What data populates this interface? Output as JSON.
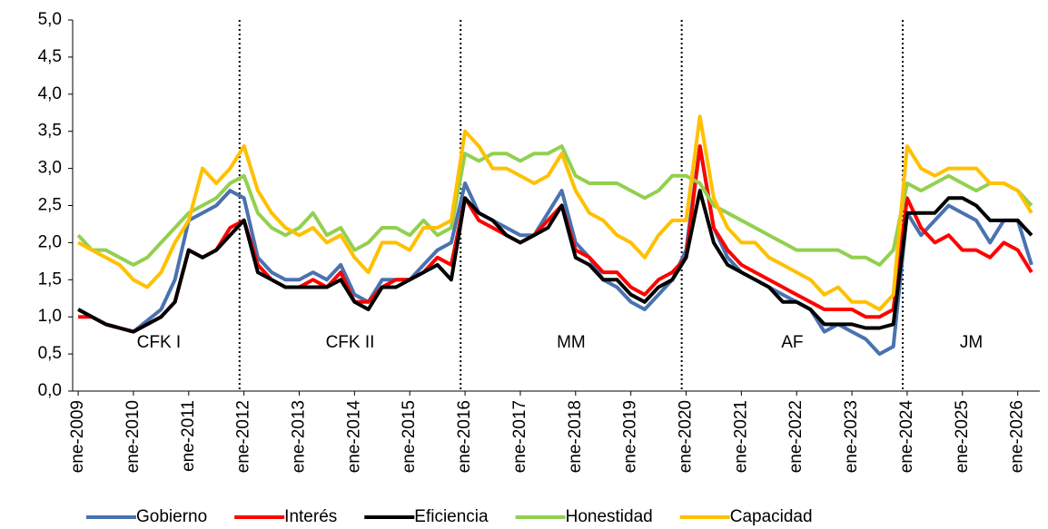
{
  "chart_data": {
    "type": "line",
    "x": [
      2009,
      2009.25,
      2009.5,
      2009.75,
      2010,
      2010.25,
      2010.5,
      2010.75,
      2011,
      2011.25,
      2011.5,
      2011.75,
      2012,
      2012.25,
      2012.5,
      2012.75,
      2013,
      2013.25,
      2013.5,
      2013.75,
      2014,
      2014.25,
      2014.5,
      2014.75,
      2015,
      2015.25,
      2015.5,
      2015.75,
      2016,
      2016.25,
      2016.5,
      2016.75,
      2017,
      2017.25,
      2017.5,
      2017.75,
      2018,
      2018.25,
      2018.5,
      2018.75,
      2019,
      2019.25,
      2019.5,
      2019.75,
      2020,
      2020.25,
      2020.5,
      2020.75,
      2021,
      2021.25,
      2021.5,
      2021.75,
      2022,
      2022.25,
      2022.5,
      2022.75,
      2023,
      2023.25,
      2023.5,
      2023.75,
      2024,
      2024.25,
      2024.5,
      2024.75,
      2025,
      2025.25,
      2025.5,
      2025.75,
      2026,
      2026.25
    ],
    "series": [
      {
        "name": "Gobierno",
        "color": "#4a72b0",
        "values": [
          1.1,
          1.0,
          0.9,
          0.85,
          0.8,
          0.95,
          1.1,
          1.5,
          2.3,
          2.4,
          2.5,
          2.7,
          2.6,
          1.8,
          1.6,
          1.5,
          1.5,
          1.6,
          1.5,
          1.7,
          1.3,
          1.2,
          1.5,
          1.5,
          1.5,
          1.7,
          1.9,
          2.0,
          2.8,
          2.4,
          2.3,
          2.2,
          2.1,
          2.1,
          2.4,
          2.7,
          2.0,
          1.8,
          1.5,
          1.4,
          1.2,
          1.1,
          1.3,
          1.5,
          1.9,
          3.3,
          2.2,
          1.8,
          1.6,
          1.5,
          1.4,
          1.3,
          1.2,
          1.1,
          0.8,
          0.9,
          0.8,
          0.7,
          0.5,
          0.6,
          2.4,
          2.1,
          2.3,
          2.5,
          2.4,
          2.3,
          2.0,
          2.3,
          2.3,
          1.7
        ]
      },
      {
        "name": "Interés",
        "color": "#ff0000",
        "values": [
          1.0,
          1.0,
          0.9,
          0.85,
          0.8,
          0.9,
          1.0,
          1.2,
          1.9,
          1.8,
          1.9,
          2.2,
          2.3,
          1.7,
          1.5,
          1.4,
          1.4,
          1.5,
          1.4,
          1.6,
          1.2,
          1.2,
          1.4,
          1.5,
          1.5,
          1.6,
          1.8,
          1.7,
          2.6,
          2.3,
          2.2,
          2.1,
          2.0,
          2.1,
          2.3,
          2.5,
          1.9,
          1.8,
          1.6,
          1.6,
          1.4,
          1.3,
          1.5,
          1.6,
          1.8,
          3.3,
          2.2,
          1.9,
          1.7,
          1.6,
          1.5,
          1.4,
          1.3,
          1.2,
          1.1,
          1.1,
          1.1,
          1.0,
          1.0,
          1.1,
          2.6,
          2.2,
          2.0,
          2.1,
          1.9,
          1.9,
          1.8,
          2.0,
          1.9,
          1.6
        ]
      },
      {
        "name": "Eficiencia",
        "color": "#000000",
        "values": [
          1.1,
          1.0,
          0.9,
          0.85,
          0.8,
          0.9,
          1.0,
          1.2,
          1.9,
          1.8,
          1.9,
          2.1,
          2.3,
          1.6,
          1.5,
          1.4,
          1.4,
          1.4,
          1.4,
          1.5,
          1.2,
          1.1,
          1.4,
          1.4,
          1.5,
          1.6,
          1.7,
          1.5,
          2.6,
          2.4,
          2.3,
          2.1,
          2.0,
          2.1,
          2.2,
          2.5,
          1.8,
          1.7,
          1.5,
          1.5,
          1.3,
          1.2,
          1.4,
          1.5,
          1.8,
          2.7,
          2.0,
          1.7,
          1.6,
          1.5,
          1.4,
          1.2,
          1.2,
          1.1,
          0.9,
          0.9,
          0.9,
          0.85,
          0.85,
          0.9,
          2.4,
          2.4,
          2.4,
          2.6,
          2.6,
          2.5,
          2.3,
          2.3,
          2.3,
          2.1
        ]
      },
      {
        "name": "Honestidad",
        "color": "#92d050",
        "values": [
          2.1,
          1.9,
          1.9,
          1.8,
          1.7,
          1.8,
          2.0,
          2.2,
          2.4,
          2.5,
          2.6,
          2.8,
          2.9,
          2.4,
          2.2,
          2.1,
          2.2,
          2.4,
          2.1,
          2.2,
          1.9,
          2.0,
          2.2,
          2.2,
          2.1,
          2.3,
          2.1,
          2.2,
          3.2,
          3.1,
          3.2,
          3.2,
          3.1,
          3.2,
          3.2,
          3.3,
          2.9,
          2.8,
          2.8,
          2.8,
          2.7,
          2.6,
          2.7,
          2.9,
          2.9,
          2.8,
          2.5,
          2.4,
          2.3,
          2.2,
          2.1,
          2.0,
          1.9,
          1.9,
          1.9,
          1.9,
          1.8,
          1.8,
          1.7,
          1.9,
          2.8,
          2.7,
          2.8,
          2.9,
          2.8,
          2.7,
          2.8,
          2.8,
          2.7,
          2.5
        ]
      },
      {
        "name": "Capacidad",
        "color": "#ffc000",
        "values": [
          2.0,
          1.9,
          1.8,
          1.7,
          1.5,
          1.4,
          1.6,
          2.0,
          2.3,
          3.0,
          2.8,
          3.0,
          3.3,
          2.7,
          2.4,
          2.2,
          2.1,
          2.2,
          2.0,
          2.1,
          1.8,
          1.6,
          2.0,
          2.0,
          1.9,
          2.2,
          2.2,
          2.3,
          3.5,
          3.3,
          3.0,
          3.0,
          2.9,
          2.8,
          2.9,
          3.2,
          2.7,
          2.4,
          2.3,
          2.1,
          2.0,
          1.8,
          2.1,
          2.3,
          2.3,
          3.7,
          2.6,
          2.2,
          2.0,
          2.0,
          1.8,
          1.7,
          1.6,
          1.5,
          1.3,
          1.4,
          1.2,
          1.2,
          1.1,
          1.3,
          3.3,
          3.0,
          2.9,
          3.0,
          3.0,
          3.0,
          2.8,
          2.8,
          2.7,
          2.4
        ]
      }
    ],
    "xlim": [
      2008.9,
      2026.4
    ],
    "xticks": [
      {
        "value": 2009,
        "label": "ene-2009"
      },
      {
        "value": 2010,
        "label": "ene-2010"
      },
      {
        "value": 2011,
        "label": "ene-2011"
      },
      {
        "value": 2012,
        "label": "ene-2012"
      },
      {
        "value": 2013,
        "label": "ene-2013"
      },
      {
        "value": 2014,
        "label": "ene-2014"
      },
      {
        "value": 2015,
        "label": "ene-2015"
      },
      {
        "value": 2016,
        "label": "ene-2016"
      },
      {
        "value": 2017,
        "label": "ene-2017"
      },
      {
        "value": 2018,
        "label": "ene-2018"
      },
      {
        "value": 2019,
        "label": "ene-2019"
      },
      {
        "value": 2020,
        "label": "ene-2020"
      },
      {
        "value": 2021,
        "label": "ene-2021"
      },
      {
        "value": 2022,
        "label": "ene-2022"
      },
      {
        "value": 2023,
        "label": "ene-2023"
      },
      {
        "value": 2024,
        "label": "ene-2024"
      },
      {
        "value": 2025,
        "label": "ene-2025"
      },
      {
        "value": 2026,
        "label": "ene-2026"
      }
    ],
    "ylim": [
      0,
      5
    ],
    "yticks": [
      {
        "value": 0,
        "label": "0,0"
      },
      {
        "value": 0.5,
        "label": "0,5"
      },
      {
        "value": 1,
        "label": "1,0"
      },
      {
        "value": 1.5,
        "label": "1,5"
      },
      {
        "value": 2,
        "label": "2,0"
      },
      {
        "value": 2.5,
        "label": "2,5"
      },
      {
        "value": 3,
        "label": "3,0"
      },
      {
        "value": 3.5,
        "label": "3,5"
      },
      {
        "value": 4,
        "label": "4,0"
      },
      {
        "value": 4.5,
        "label": "4,5"
      },
      {
        "value": 5,
        "label": "5,0"
      }
    ],
    "period_boundaries": [
      2011.92,
      2015.92,
      2019.92,
      2023.92
    ],
    "period_labels": [
      "CFK I",
      "CFK II",
      "MM",
      "AF",
      "JM"
    ],
    "legend": "bottom"
  }
}
